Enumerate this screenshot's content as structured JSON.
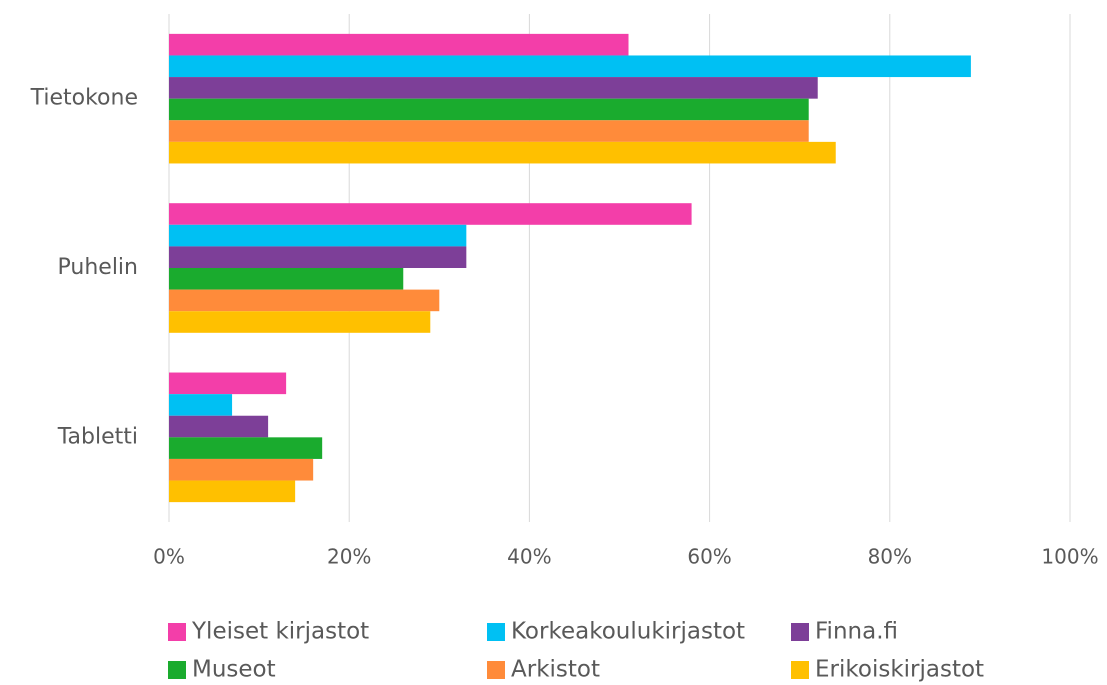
{
  "chart_data": {
    "type": "hbar",
    "categories": [
      "Tietokone",
      "Puhelin",
      "Tabletti"
    ],
    "series": [
      {
        "name": "Yleiset kirjastot",
        "color": "#f33ea9",
        "values": [
          51,
          58,
          13
        ]
      },
      {
        "name": "Korkeakoulukirjastot",
        "color": "#00c0f3",
        "values": [
          89,
          33,
          7
        ]
      },
      {
        "name": "Finna.fi",
        "color": "#7d3f98",
        "values": [
          72,
          33,
          11
        ]
      },
      {
        "name": "Museot",
        "color": "#1aab2e",
        "values": [
          71,
          26,
          17
        ]
      },
      {
        "name": "Arkistot",
        "color": "#ff8b3a",
        "values": [
          71,
          30,
          16
        ]
      },
      {
        "name": "Erikoiskirjastot",
        "color": "#ffc000",
        "values": [
          74,
          29,
          14
        ]
      }
    ],
    "xlim": [
      0,
      100
    ],
    "xticks": [
      {
        "value": 0,
        "label": "0%"
      },
      {
        "value": 20,
        "label": "20%"
      },
      {
        "value": 40,
        "label": "40%"
      },
      {
        "value": 60,
        "label": "60%"
      },
      {
        "value": 80,
        "label": "80%"
      },
      {
        "value": 100,
        "label": "100%"
      }
    ],
    "grid": true
  }
}
